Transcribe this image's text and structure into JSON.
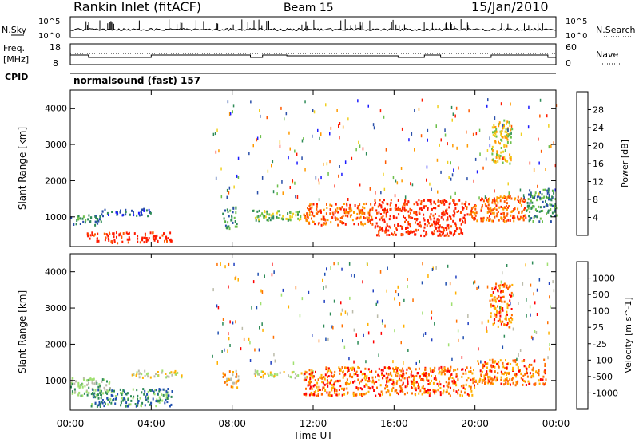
{
  "header": {
    "station": "Rankin Inlet (fitACF)",
    "beam": "Beam 15",
    "date": "15/Jan/2010"
  },
  "noise_panel": {
    "left_label": "N.Sky",
    "right_label": "N.Search",
    "left_ticks": [
      "10^5",
      "10^0"
    ],
    "right_ticks": [
      "10^5",
      "10^0"
    ]
  },
  "freq_panel": {
    "left_label_1": "Freq.",
    "left_label_2": "[MHz]",
    "right_label": "Nave",
    "left_ticks": [
      "18",
      "8"
    ],
    "right_ticks": [
      "60",
      "0"
    ]
  },
  "cpid": {
    "label": "CPID",
    "value": "normalsound (fast) 157"
  },
  "x_axis": {
    "label": "Time UT",
    "ticks": [
      "00:00",
      "04:00",
      "08:00",
      "12:00",
      "16:00",
      "20:00",
      "00:00"
    ]
  },
  "colors": {
    "power": [
      "#1a1aff",
      "#2a4faa",
      "#2e8b57",
      "#6cbf4a",
      "#f0d020",
      "#ff9a00",
      "#ff5a00",
      "#ff1a00"
    ],
    "velocity": [
      "#ff0000",
      "#ff7000",
      "#ffb000",
      "#bbbbaa",
      "#a0e070",
      "#2e8b57",
      "#2050b0",
      "#2040c0"
    ]
  },
  "chart_data": [
    {
      "type": "heatmap",
      "ylabel": "Slant Range [km]",
      "ylim": [
        180,
        4500
      ],
      "y_ticks": [
        1000,
        2000,
        3000,
        4000
      ],
      "xlim_hours": [
        0,
        24
      ],
      "colorbar": {
        "label": "Power [dB]",
        "ticks": [
          "4",
          "8",
          "12",
          "16",
          "20",
          "24",
          "28"
        ]
      },
      "regions": [
        {
          "t0": 0.0,
          "t1": 1.5,
          "r0": 800,
          "r1": 1100,
          "level": 2
        },
        {
          "t0": 0.8,
          "t1": 5.0,
          "r0": 300,
          "r1": 600,
          "level": 7
        },
        {
          "t0": 1.5,
          "t1": 4.0,
          "r0": 1050,
          "r1": 1250,
          "level": 1
        },
        {
          "t0": 7.5,
          "t1": 8.2,
          "r0": 700,
          "r1": 1300,
          "level": 2
        },
        {
          "t0": 9.0,
          "t1": 11.5,
          "r0": 900,
          "r1": 1200,
          "level": 3
        },
        {
          "t0": 11.5,
          "t1": 15.0,
          "r0": 800,
          "r1": 1400,
          "level": 6
        },
        {
          "t0": 15.0,
          "t1": 19.5,
          "r0": 500,
          "r1": 1500,
          "level": 7
        },
        {
          "t0": 19.5,
          "t1": 22.5,
          "r0": 900,
          "r1": 1600,
          "level": 6
        },
        {
          "t0": 20.8,
          "t1": 21.8,
          "r0": 2500,
          "r1": 3700,
          "level": 4
        },
        {
          "t0": 22.5,
          "t1": 24.0,
          "r0": 900,
          "r1": 1800,
          "level": 2
        }
      ]
    },
    {
      "type": "heatmap",
      "ylabel": "Slant Range [km]",
      "ylim": [
        180,
        4500
      ],
      "y_ticks": [
        1000,
        2000,
        3000,
        4000
      ],
      "xlim_hours": [
        0,
        24
      ],
      "colorbar": {
        "label": "Velocity [m s^-1]",
        "ticks": [
          "-1000",
          "-500",
          "-100",
          "-25",
          "25",
          "100",
          "500",
          "1000"
        ]
      },
      "regions": [
        {
          "t0": 0.0,
          "t1": 2.0,
          "r0": 600,
          "r1": 1100,
          "level": 4
        },
        {
          "t0": 1.0,
          "t1": 5.0,
          "r0": 300,
          "r1": 800,
          "level": 5
        },
        {
          "t0": 3.0,
          "t1": 5.5,
          "r0": 1100,
          "r1": 1300,
          "level": 3
        },
        {
          "t0": 7.5,
          "t1": 8.3,
          "r0": 800,
          "r1": 1300,
          "level": 2
        },
        {
          "t0": 9.0,
          "t1": 12.0,
          "r0": 1100,
          "r1": 1300,
          "level": 3
        },
        {
          "t0": 11.5,
          "t1": 16.0,
          "r0": 600,
          "r1": 1400,
          "level": 1
        },
        {
          "t0": 16.0,
          "t1": 20.0,
          "r0": 600,
          "r1": 1400,
          "level": 1
        },
        {
          "t0": 20.0,
          "t1": 23.5,
          "r0": 900,
          "r1": 1600,
          "level": 1
        },
        {
          "t0": 20.7,
          "t1": 21.8,
          "r0": 2500,
          "r1": 3700,
          "level": 1
        }
      ]
    }
  ]
}
